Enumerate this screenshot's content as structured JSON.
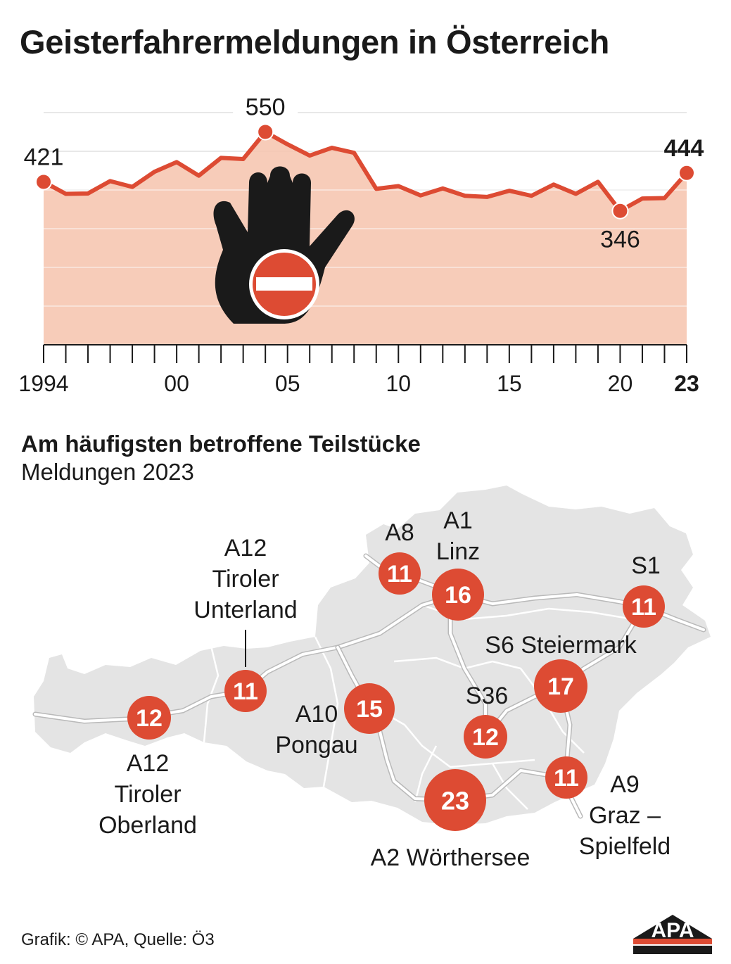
{
  "title": "Geisterfahrermeldungen in Österreich",
  "chart_data": {
    "type": "area",
    "x": [
      1994,
      1995,
      1996,
      1997,
      1998,
      1999,
      2000,
      2001,
      2002,
      2003,
      2004,
      2005,
      2006,
      2007,
      2008,
      2009,
      2010,
      2011,
      2012,
      2013,
      2014,
      2015,
      2016,
      2017,
      2018,
      2019,
      2020,
      2021,
      2022,
      2023
    ],
    "values": [
      421,
      390,
      391,
      423,
      408,
      447,
      472,
      437,
      483,
      480,
      550,
      518,
      489,
      509,
      496,
      403,
      410,
      386,
      404,
      385,
      382,
      398,
      385,
      414,
      390,
      421,
      346,
      378,
      379,
      444
    ],
    "x_tick_labels": [
      "1994",
      "00",
      "05",
      "10",
      "15",
      "20",
      "23"
    ],
    "x_tick_years": [
      1994,
      2000,
      2005,
      2010,
      2015,
      2020,
      2023
    ],
    "labeled_points": [
      {
        "year": 1994,
        "label": "421"
      },
      {
        "year": 2004,
        "label": "550"
      },
      {
        "year": 2020,
        "label": "346"
      },
      {
        "year": 2023,
        "label": "444",
        "bold": true
      }
    ],
    "ylim": [
      0,
      600
    ],
    "grid": true,
    "colors": {
      "line": "#dd4b33",
      "fill": "#f6c3ad",
      "grid": "#e8e8e8"
    }
  },
  "map": {
    "subtitle": "Am häufigsten betroffene Teilstücke",
    "subtitle_line2": "Meldungen 2023",
    "sections": [
      {
        "label": "A12\nTiroler\nOberland",
        "value": 12
      },
      {
        "label": "A12\nTiroler\nUnterland",
        "value": 11
      },
      {
        "label": "A8",
        "value": 11
      },
      {
        "label": "A1\nLinz",
        "value": 16
      },
      {
        "label": "S1",
        "value": 11
      },
      {
        "label": "A10\nPongau",
        "value": 15
      },
      {
        "label": "S6 Steiermark",
        "value": 17
      },
      {
        "label": "S36",
        "value": 12
      },
      {
        "label": "A2 Wörthersee",
        "value": 23
      },
      {
        "label": "A9\nGraz –\nSpielfeld",
        "value": 11
      }
    ],
    "colors": {
      "bubble": "#dd4b33",
      "land": "#e4e4e4",
      "road": "#ffffff"
    }
  },
  "footer": "Grafik: © APA, Quelle: Ö3",
  "logo_text": "APA",
  "icons": {
    "hand": "stop-hand-icon",
    "no_entry": "no-entry-sign-icon"
  }
}
